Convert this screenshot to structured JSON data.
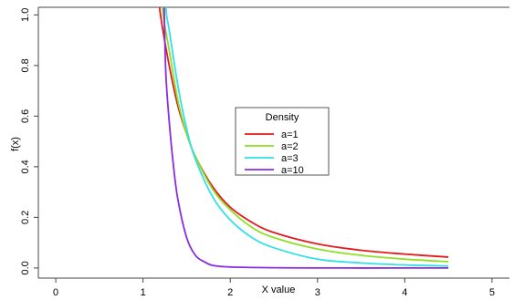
{
  "chart_data": {
    "type": "line",
    "title": "",
    "xlabel": "X value",
    "ylabel": "f(x)",
    "xlim": [
      0,
      5
    ],
    "ylim": [
      0,
      1.0
    ],
    "x_ticks": [
      "0",
      "1",
      "2",
      "3",
      "4",
      "5"
    ],
    "y_ticks": [
      "0.0",
      "0.2",
      "0.4",
      "0.6",
      "0.8",
      "1.0"
    ],
    "grid": false,
    "legend": {
      "title": "Density",
      "position": "center-right"
    },
    "series": [
      {
        "name": "a=1",
        "color": "#e41a1c",
        "x": [
          1.2,
          1.3,
          1.4,
          1.5,
          1.6,
          1.8,
          2.0,
          2.25,
          2.5,
          3.0,
          3.5,
          4.0,
          4.5
        ],
        "y": [
          1.0,
          0.8,
          0.64,
          0.53,
          0.44,
          0.32,
          0.24,
          0.18,
          0.14,
          0.095,
          0.07,
          0.055,
          0.043
        ]
      },
      {
        "name": "a=2",
        "color": "#8fe024",
        "x": [
          1.23,
          1.3,
          1.4,
          1.5,
          1.6,
          1.8,
          2.0,
          2.25,
          2.5,
          3.0,
          3.5,
          4.0,
          4.5
        ],
        "y": [
          1.0,
          0.86,
          0.66,
          0.53,
          0.44,
          0.31,
          0.23,
          0.16,
          0.12,
          0.075,
          0.05,
          0.035,
          0.025
        ]
      },
      {
        "name": "a=3",
        "color": "#33e0e6",
        "x": [
          1.27,
          1.3,
          1.4,
          1.5,
          1.6,
          1.8,
          2.0,
          2.25,
          2.5,
          3.0,
          3.5,
          4.0,
          4.5
        ],
        "y": [
          1.0,
          0.94,
          0.72,
          0.55,
          0.43,
          0.28,
          0.19,
          0.12,
          0.08,
          0.035,
          0.02,
          0.012,
          0.008
        ]
      },
      {
        "name": "a=10",
        "color": "#8a2be2",
        "x": [
          1.26,
          1.3,
          1.35,
          1.4,
          1.5,
          1.6,
          1.7,
          1.8,
          2.0,
          2.5,
          3.0,
          4.0,
          4.5
        ],
        "y": [
          0.78,
          0.58,
          0.4,
          0.27,
          0.12,
          0.05,
          0.025,
          0.01,
          0.004,
          0.001,
          0.0,
          0.0,
          0.0
        ]
      }
    ]
  }
}
